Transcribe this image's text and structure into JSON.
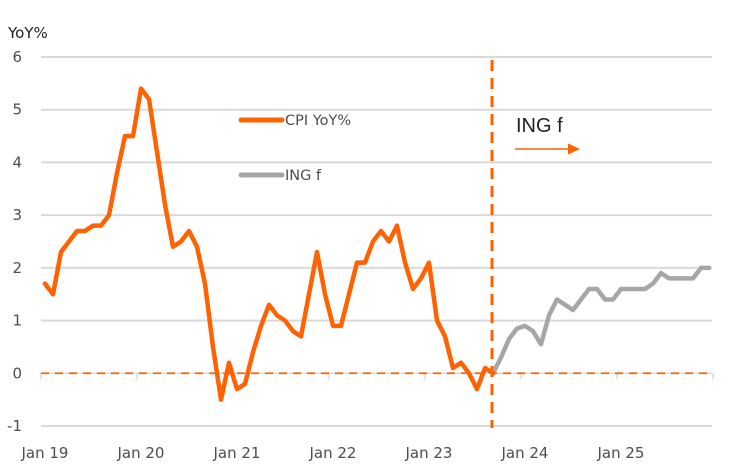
{
  "chart_data": {
    "type": "line",
    "title": "",
    "ylabel": "YoY%",
    "xlabel": "",
    "ylim": [
      -1,
      6
    ],
    "yticks": [
      "6",
      "5",
      "4",
      "3",
      "2",
      "1",
      "0",
      "-1"
    ],
    "ytick_values": [
      6,
      5,
      4,
      3,
      2,
      1,
      0,
      -1
    ],
    "xtick_labels": [
      "Jan 19",
      "Jan 20",
      "Jan 21",
      "Jan 22",
      "Jan 23",
      "Jan 24",
      "Jan 25"
    ],
    "x_start": "Jan 19",
    "x_unit": "month",
    "grid": true,
    "zero_line": "dashed",
    "forecast_start_month_index": 56,
    "annotation": {
      "text": "ING f",
      "arrow": "right"
    },
    "legend": [
      {
        "label": "CPI YoY%",
        "color": "#ff6200"
      },
      {
        "label": "ING f",
        "color": "#a6a6a6"
      }
    ],
    "series": [
      {
        "name": "CPI YoY%",
        "color": "#ff6200",
        "start_month_index": 0,
        "values": [
          1.7,
          1.5,
          2.3,
          2.5,
          2.7,
          2.7,
          2.8,
          2.8,
          3.0,
          3.8,
          4.5,
          4.5,
          5.4,
          5.2,
          4.2,
          3.2,
          2.4,
          2.5,
          2.7,
          2.4,
          1.7,
          0.5,
          -0.5,
          0.2,
          -0.3,
          -0.2,
          0.4,
          0.9,
          1.3,
          1.1,
          1.0,
          0.8,
          0.7,
          1.5,
          2.3,
          1.5,
          0.9,
          0.9,
          1.5,
          2.1,
          2.1,
          2.5,
          2.7,
          2.5,
          2.8,
          2.1,
          1.6,
          1.8,
          2.1,
          1.0,
          0.7,
          0.1,
          0.2,
          0.0,
          -0.3,
          0.1,
          0.0
        ]
      },
      {
        "name": "ING f",
        "color": "#a6a6a6",
        "start_month_index": 56,
        "values": [
          0.0,
          0.3,
          0.65,
          0.85,
          0.9,
          0.8,
          0.55,
          1.1,
          1.4,
          1.3,
          1.2,
          1.4,
          1.6,
          1.6,
          1.4,
          1.4,
          1.6,
          1.6,
          1.6,
          1.6,
          1.7,
          1.9,
          1.8,
          1.8,
          1.8,
          1.8,
          2.0,
          2.0
        ]
      }
    ]
  },
  "colors": {
    "accent": "#ff6200",
    "forecast": "#a6a6a6",
    "grid": "#d9d9d9",
    "text": "#4d4d4d"
  }
}
